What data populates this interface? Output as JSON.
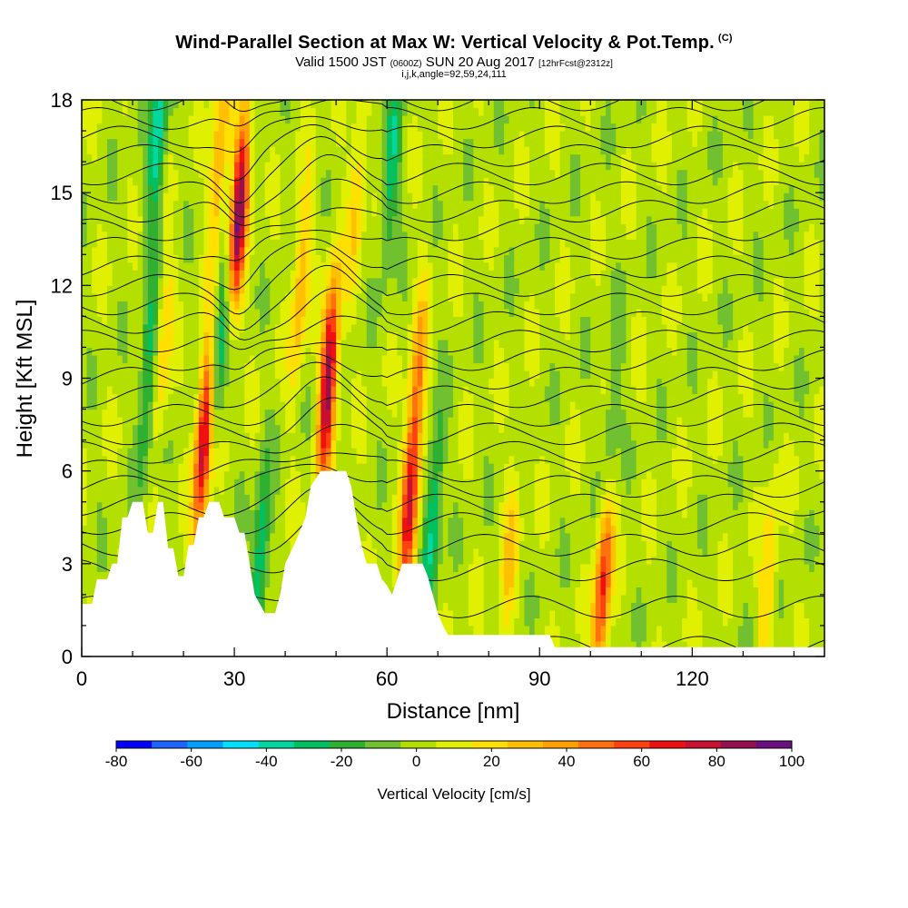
{
  "header": {
    "title_main": "Wind-Parallel Section at Max W: Vertical Velocity & Pot.Temp.",
    "title_badge": "(C)",
    "subtitle_valid": "Valid 1500 JST",
    "subtitle_utc": "(0600Z)",
    "subtitle_date": "SUN 20 Aug 2017",
    "subtitle_fcst": "[12hrFcst@2312z]",
    "indices": "i,j,k,angle=92,59,24,111"
  },
  "chart_data": {
    "type": "heatmap",
    "xlabel": "Distance [nm]",
    "ylabel": "Height [Kft MSL]",
    "xlim": [
      0,
      146
    ],
    "ylim": [
      0,
      18
    ],
    "x_ticks": [
      0,
      30,
      60,
      90,
      120
    ],
    "x_tick_labels": [
      "0",
      "30",
      "60",
      "90",
      "120"
    ],
    "y_ticks": [
      0,
      3,
      6,
      9,
      12,
      15,
      18
    ],
    "y_tick_labels": [
      "0",
      "3",
      "6",
      "9",
      "12",
      "15",
      "18"
    ],
    "colorbar": {
      "title": "Vertical Velocity [cm/s]",
      "levels": [
        -80,
        -70,
        -60,
        -50,
        -40,
        -30,
        -20,
        -10,
        0,
        10,
        20,
        30,
        40,
        50,
        60,
        70,
        80,
        90,
        100
      ],
      "labels": [
        "-80",
        "-60",
        "-40",
        "-20",
        "0",
        "20",
        "40",
        "60",
        "80",
        "100"
      ],
      "colors": [
        "#0000ff",
        "#1e64ff",
        "#00a0ff",
        "#00e0ff",
        "#00d8a0",
        "#00c060",
        "#30b030",
        "#70c030",
        "#b4e000",
        "#e0f000",
        "#ffe000",
        "#ffc000",
        "#ffa000",
        "#ff7010",
        "#ff4010",
        "#f01010",
        "#c81030",
        "#961050",
        "#6a1080"
      ]
    },
    "terrain_kft": [
      [
        0,
        1.7
      ],
      [
        2,
        1.7
      ],
      [
        3,
        2.5
      ],
      [
        5,
        2.5
      ],
      [
        6,
        3
      ],
      [
        7,
        3
      ],
      [
        8,
        4.5
      ],
      [
        9,
        4.5
      ],
      [
        10,
        5
      ],
      [
        12,
        5
      ],
      [
        13,
        4
      ],
      [
        14,
        4
      ],
      [
        15,
        5
      ],
      [
        16,
        5
      ],
      [
        17,
        3.5
      ],
      [
        18,
        3.5
      ],
      [
        19,
        2.6
      ],
      [
        20,
        2.6
      ],
      [
        21,
        3.6
      ],
      [
        22,
        3.6
      ],
      [
        23,
        4.5
      ],
      [
        24,
        4.5
      ],
      [
        25,
        5
      ],
      [
        27,
        5
      ],
      [
        28,
        4.5
      ],
      [
        30,
        4.5
      ],
      [
        31,
        4
      ],
      [
        32,
        4
      ],
      [
        33,
        3
      ],
      [
        34,
        2
      ],
      [
        35,
        1.7
      ],
      [
        36,
        1.4
      ],
      [
        38,
        1.4
      ],
      [
        39,
        2
      ],
      [
        40,
        3
      ],
      [
        42,
        3.7
      ],
      [
        44,
        4.5
      ],
      [
        45,
        5.5
      ],
      [
        47,
        6
      ],
      [
        52,
        6
      ],
      [
        53,
        5.5
      ],
      [
        54,
        4.5
      ],
      [
        55,
        3.6
      ],
      [
        56,
        3
      ],
      [
        58,
        3
      ],
      [
        59,
        2.5
      ],
      [
        60,
        2.3
      ],
      [
        61,
        2
      ],
      [
        62,
        2.5
      ],
      [
        63,
        3
      ],
      [
        67,
        3
      ],
      [
        68,
        2.6
      ],
      [
        69,
        2
      ],
      [
        70,
        1.4
      ],
      [
        71,
        1
      ],
      [
        72,
        0.7
      ],
      [
        92,
        0.7
      ],
      [
        93,
        0.3
      ],
      [
        146,
        0.3
      ]
    ],
    "updraft_cores": [
      {
        "x": 31,
        "y": 14.5,
        "w": 95
      },
      {
        "x": 24,
        "y": 7,
        "w": 85
      },
      {
        "x": 48.5,
        "y": 9,
        "w": 95
      },
      {
        "x": 64.5,
        "y": 5,
        "w": 70
      },
      {
        "x": 102.5,
        "y": 2.5,
        "w": 70
      },
      {
        "x": 27,
        "y": 16,
        "w": 40
      },
      {
        "x": 43,
        "y": 12,
        "w": 35
      },
      {
        "x": 16,
        "y": 10,
        "w": 25
      },
      {
        "x": 66,
        "y": 9,
        "w": 35
      },
      {
        "x": 54,
        "y": 15,
        "w": 25
      },
      {
        "x": 84,
        "y": 3,
        "w": 25
      },
      {
        "x": 135,
        "y": 2.5,
        "w": 25
      }
    ],
    "downdraft_cores": [
      {
        "x": 15,
        "y": 17,
        "w": -45
      },
      {
        "x": 35,
        "y": 3,
        "w": -40
      },
      {
        "x": 61,
        "y": 16,
        "w": -35
      },
      {
        "x": 27,
        "y": 10,
        "w": -35
      },
      {
        "x": 69,
        "y": 4.5,
        "w": -40
      },
      {
        "x": 13,
        "y": 9,
        "w": -35
      },
      {
        "x": 104,
        "y": 7,
        "w": -25
      }
    ],
    "isentropes_base_kft": [
      0.3,
      1.6,
      2.8,
      3.6,
      4.3,
      4.9,
      5.5,
      6.0,
      6.6,
      7.2,
      7.8,
      8.4,
      9.0,
      9.6,
      10.2,
      10.8,
      11.4,
      12.0,
      12.6,
      13.2,
      13.8,
      14.4,
      15.0,
      15.6,
      16.2,
      16.8,
      17.4,
      18.0
    ]
  }
}
